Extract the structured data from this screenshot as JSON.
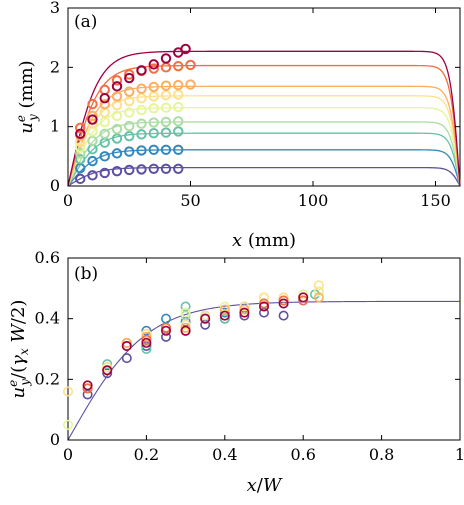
{
  "chart_data": [
    {
      "type": "line",
      "panel_label": "(a)",
      "xlabel": "x (mm)",
      "ylabel": "u_y^e (mm)",
      "xlim": [
        0,
        160
      ],
      "ylim": [
        0,
        3
      ],
      "xticks": [
        0,
        50,
        100,
        150
      ],
      "yticks": [
        0,
        1,
        2,
        3
      ],
      "grid": false,
      "curve_shape": "tanh rise from x=0, plateau, tanh fall to 0 at x=160",
      "series": [
        {
          "color": "#5e4fa2",
          "plateau": 0.31,
          "markers": {
            "x": [
              5,
              10,
              15,
              20,
              25,
              30,
              35,
              40,
              45
            ],
            "y": [
              0.12,
              0.18,
              0.22,
              0.25,
              0.27,
              0.28,
              0.29,
              0.29,
              0.29
            ]
          }
        },
        {
          "color": "#3288bd",
          "plateau": 0.61,
          "markers": {
            "x": [
              5,
              10,
              15,
              20,
              25,
              30,
              35,
              40,
              45
            ],
            "y": [
              0.3,
              0.42,
              0.5,
              0.55,
              0.58,
              0.6,
              0.61,
              0.61,
              0.61
            ]
          }
        },
        {
          "color": "#66c2a5",
          "plateau": 0.89,
          "markers": {
            "x": [
              5,
              10,
              15,
              20,
              25,
              30,
              35,
              40,
              45
            ],
            "y": [
              0.45,
              0.62,
              0.73,
              0.8,
              0.84,
              0.87,
              0.89,
              0.9,
              0.92
            ]
          }
        },
        {
          "color": "#abdda4",
          "plateau": 1.08,
          "markers": {
            "x": [
              5,
              10,
              15,
              20,
              25,
              30,
              35,
              40,
              45
            ],
            "y": [
              0.55,
              0.76,
              0.88,
              0.96,
              1.01,
              1.05,
              1.07,
              1.08,
              1.09
            ]
          }
        },
        {
          "color": "#e6f598",
          "plateau": 1.32,
          "markers": {
            "x": [
              5,
              10,
              15,
              20,
              25,
              30,
              35,
              40,
              45
            ],
            "y": [
              0.65,
              0.92,
              1.08,
              1.18,
              1.24,
              1.28,
              1.31,
              1.32,
              1.33
            ]
          }
        },
        {
          "color": "#fee08b",
          "plateau": 1.52,
          "markers": {
            "x": [
              5,
              10,
              15,
              20,
              25,
              30,
              35,
              40,
              45
            ],
            "y": [
              0.75,
              1.05,
              1.24,
              1.36,
              1.43,
              1.48,
              1.51,
              1.53,
              1.54
            ]
          }
        },
        {
          "color": "#fdae61",
          "plateau": 1.68,
          "markers": {
            "x": [
              5,
              10,
              15,
              20,
              25,
              30,
              35,
              40,
              45,
              50
            ],
            "y": [
              0.85,
              1.18,
              1.38,
              1.51,
              1.59,
              1.64,
              1.67,
              1.69,
              1.7,
              1.71
            ]
          }
        },
        {
          "color": "#f46d43",
          "plateau": 2.03,
          "markers": {
            "x": [
              5,
              10,
              15,
              20,
              25,
              30,
              35,
              40,
              45,
              50
            ],
            "y": [
              0.98,
              1.38,
              1.62,
              1.78,
              1.88,
              1.94,
              1.98,
              2.0,
              2.02,
              2.04
            ]
          }
        },
        {
          "color": "#9e0142",
          "plateau": 2.27,
          "markers": {
            "x": [
              5,
              10,
              15,
              20,
              25,
              30,
              35,
              40,
              45,
              48
            ],
            "y": [
              0.88,
              1.12,
              1.48,
              1.68,
              1.82,
              1.95,
              2.05,
              2.15,
              2.25,
              2.31
            ]
          }
        }
      ]
    },
    {
      "type": "scatter",
      "panel_label": "(b)",
      "xlabel": "x/W",
      "ylabel": "u_y^e/(γ_x W/2)",
      "xlim": [
        0,
        1
      ],
      "ylim": [
        0,
        0.6
      ],
      "xticks": [
        0,
        0.2,
        0.4,
        0.6,
        0.8,
        1
      ],
      "yticks": [
        0,
        0.2,
        0.4,
        0.6
      ],
      "grid": false,
      "master_curve": {
        "color": "#5e4fa2",
        "plateau": 0.457
      },
      "series": [
        {
          "color": "#5e4fa2",
          "x": [
            0.05,
            0.1,
            0.15,
            0.2,
            0.25,
            0.3,
            0.35,
            0.4,
            0.45,
            0.5,
            0.55
          ],
          "y": [
            0.15,
            0.22,
            0.27,
            0.31,
            0.34,
            0.36,
            0.38,
            0.4,
            0.41,
            0.42,
            0.41
          ]
        },
        {
          "color": "#3288bd",
          "x": [
            0.05,
            0.1,
            0.15,
            0.2,
            0.25,
            0.3,
            0.35,
            0.4,
            0.45,
            0.5,
            0.55,
            0.6
          ],
          "y": [
            0.17,
            0.24,
            0.32,
            0.36,
            0.4,
            0.39,
            0.41,
            0.42,
            0.44,
            0.45,
            0.46,
            0.46
          ]
        },
        {
          "color": "#66c2a5",
          "x": [
            0.05,
            0.1,
            0.15,
            0.2,
            0.25,
            0.3,
            0.35,
            0.4,
            0.45,
            0.5,
            0.55,
            0.6,
            0.63
          ],
          "y": [
            0.18,
            0.25,
            0.31,
            0.3,
            0.37,
            0.44,
            0.4,
            0.4,
            0.43,
            0.44,
            0.45,
            0.47,
            0.48
          ]
        },
        {
          "color": "#abdda4",
          "x": [
            0.05,
            0.1,
            0.15,
            0.2,
            0.25,
            0.3,
            0.35,
            0.4,
            0.45,
            0.5,
            0.55,
            0.6,
            0.64
          ],
          "y": [
            0.18,
            0.24,
            0.32,
            0.35,
            0.36,
            0.41,
            0.4,
            0.41,
            0.44,
            0.45,
            0.47,
            0.47,
            0.49
          ]
        },
        {
          "color": "#e6f598",
          "x": [
            0.0,
            0.05,
            0.1,
            0.15,
            0.2,
            0.25,
            0.3,
            0.35,
            0.4,
            0.45,
            0.5,
            0.55,
            0.6,
            0.64
          ],
          "y": [
            0.05,
            0.18,
            0.24,
            0.31,
            0.33,
            0.36,
            0.42,
            0.4,
            0.44,
            0.43,
            0.47,
            0.46,
            0.48,
            0.49
          ]
        },
        {
          "color": "#fee08b",
          "x": [
            0.0,
            0.05,
            0.1,
            0.15,
            0.2,
            0.25,
            0.3,
            0.35,
            0.4,
            0.45,
            0.5,
            0.55,
            0.6,
            0.64
          ],
          "y": [
            0.16,
            0.18,
            0.24,
            0.31,
            0.35,
            0.37,
            0.38,
            0.41,
            0.43,
            0.44,
            0.47,
            0.47,
            0.47,
            0.51
          ]
        },
        {
          "color": "#fdae61",
          "x": [
            0.05,
            0.1,
            0.15,
            0.2,
            0.25,
            0.3,
            0.35,
            0.4,
            0.45,
            0.5,
            0.55,
            0.6,
            0.64
          ],
          "y": [
            0.17,
            0.23,
            0.32,
            0.34,
            0.37,
            0.37,
            0.4,
            0.43,
            0.43,
            0.44,
            0.46,
            0.47,
            0.47
          ]
        },
        {
          "color": "#f46d43",
          "x": [
            0.05,
            0.1,
            0.15,
            0.2,
            0.25,
            0.3,
            0.35,
            0.4,
            0.45,
            0.5,
            0.55,
            0.6
          ],
          "y": [
            0.17,
            0.23,
            0.31,
            0.33,
            0.37,
            0.36,
            0.4,
            0.41,
            0.42,
            0.45,
            0.46,
            0.46
          ]
        },
        {
          "color": "#9e0142",
          "x": [
            0.05,
            0.1,
            0.15,
            0.2,
            0.25,
            0.3,
            0.35,
            0.4,
            0.45,
            0.5,
            0.55,
            0.6
          ],
          "y": [
            0.18,
            0.23,
            0.31,
            0.32,
            0.36,
            0.36,
            0.4,
            0.41,
            0.42,
            0.44,
            0.45,
            0.47
          ]
        }
      ]
    }
  ]
}
